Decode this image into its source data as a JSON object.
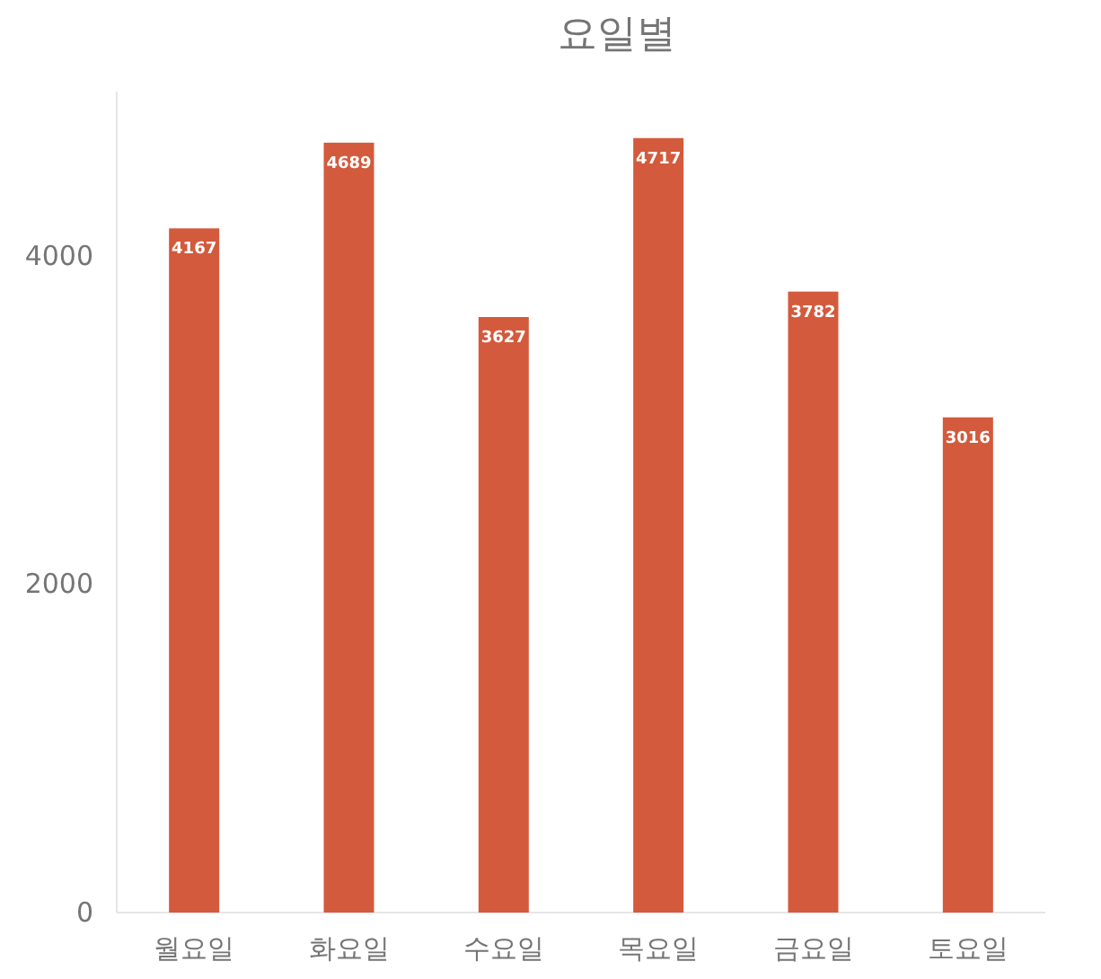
{
  "chart_data": {
    "type": "bar",
    "title": "요일별",
    "categories": [
      "월요일",
      "화요일",
      "수요일",
      "목요일",
      "금요일",
      "토요일"
    ],
    "values": [
      4167,
      4689,
      3627,
      4717,
      3782,
      3016
    ],
    "color": "#d35a3c",
    "ylim": [
      0,
      5000
    ],
    "yticks": [
      0,
      2000,
      4000
    ],
    "data_labels": true
  }
}
